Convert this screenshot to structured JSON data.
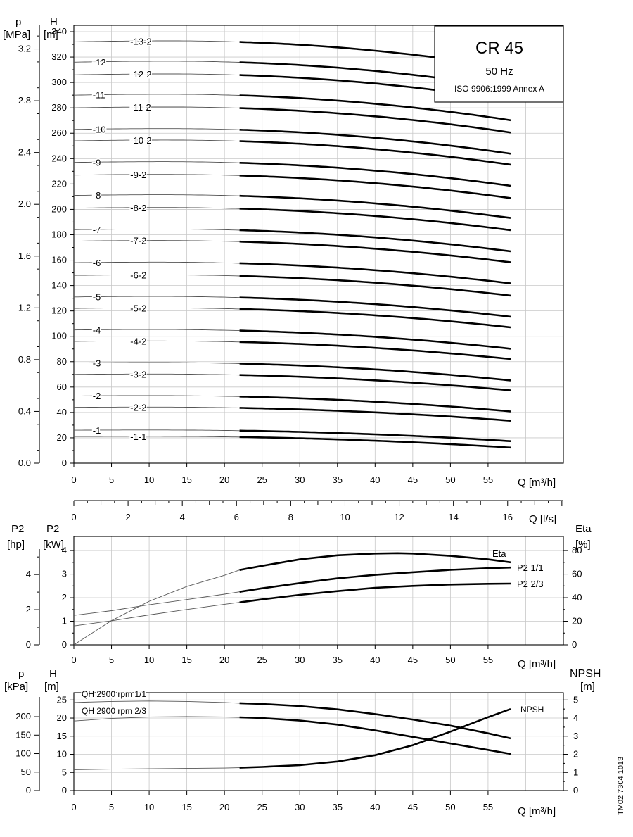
{
  "chart_data": [
    {
      "type": "line",
      "name": "head-curves",
      "title": "CR 45",
      "subtitle": "50 Hz",
      "standard": "ISO 9906:1999 Annex A",
      "xlabel": "Q [m³/h]",
      "xlim": [
        0,
        65
      ],
      "xticks": [
        0,
        5,
        10,
        15,
        20,
        25,
        30,
        35,
        40,
        45,
        50,
        55
      ],
      "ylabel_left_outer": "p",
      "ylabel_left_outer_unit": "[MPa]",
      "ylabel_left": "H",
      "ylabel_left_unit": "[m]",
      "ylim": [
        0,
        345
      ],
      "yticks": [
        0,
        20,
        40,
        60,
        80,
        100,
        120,
        140,
        160,
        180,
        200,
        220,
        240,
        260,
        280,
        300,
        320,
        340
      ],
      "p_ticks": [
        "0.0",
        "0.4",
        "0.8",
        "1.2",
        "1.6",
        "2.0",
        "2.4",
        "2.8",
        "3.2"
      ],
      "operating_range": [
        22,
        58
      ],
      "series": [
        {
          "name": "-1-1",
          "h0": 21,
          "k": 0.0035
        },
        {
          "name": "-1",
          "h0": 26,
          "k": 0.0035
        },
        {
          "name": "-2-2",
          "h0": 44,
          "k": 0.0043
        },
        {
          "name": "-2",
          "h0": 53,
          "k": 0.005
        },
        {
          "name": "-3-2",
          "h0": 70,
          "k": 0.0052
        },
        {
          "name": "-3",
          "h0": 79,
          "k": 0.0057
        },
        {
          "name": "-4-2",
          "h0": 96,
          "k": 0.0058
        },
        {
          "name": "-4",
          "h0": 105,
          "k": 0.0062
        },
        {
          "name": "-5-2",
          "h0": 122,
          "k": 0.0063
        },
        {
          "name": "-5",
          "h0": 131,
          "k": 0.0066
        },
        {
          "name": "-6-2",
          "h0": 148,
          "k": 0.0068
        },
        {
          "name": "-6",
          "h0": 158,
          "k": 0.007
        },
        {
          "name": "-7-2",
          "h0": 175,
          "k": 0.0072
        },
        {
          "name": "-7",
          "h0": 184,
          "k": 0.0074
        },
        {
          "name": "-8-2",
          "h0": 201,
          "k": 0.0076
        },
        {
          "name": "-8",
          "h0": 211,
          "k": 0.0078
        },
        {
          "name": "-9-2",
          "h0": 227,
          "k": 0.008
        },
        {
          "name": "-9",
          "h0": 237,
          "k": 0.0082
        },
        {
          "name": "-10-2",
          "h0": 254,
          "k": 0.0084
        },
        {
          "name": "-10",
          "h0": 263,
          "k": 0.0086
        },
        {
          "name": "-11-2",
          "h0": 280,
          "k": 0.0088
        },
        {
          "name": "-11",
          "h0": 290,
          "k": 0.009
        },
        {
          "name": "-12-2",
          "h0": 306,
          "k": 0.0092
        },
        {
          "name": "-12",
          "h0": 316,
          "k": 0.0094
        },
        {
          "name": "-13-2",
          "h0": 332,
          "k": 0.0096
        }
      ]
    },
    {
      "type": "axis",
      "name": "flow-ls",
      "xlabel": "Q [l/s]",
      "xlim": [
        0,
        18
      ],
      "xticks": [
        0,
        2,
        4,
        6,
        8,
        10,
        12,
        14,
        16
      ]
    },
    {
      "type": "line",
      "name": "power-efficiency",
      "xlabel": "Q [m³/h]",
      "xlim": [
        0,
        65
      ],
      "xticks": [
        0,
        5,
        10,
        15,
        20,
        25,
        30,
        35,
        40,
        45,
        50,
        55
      ],
      "ylabel_left_outer": "P2",
      "ylabel_left_outer_unit": "[hp]",
      "ylabel_left": "P2",
      "ylabel_left_unit": "[kW]",
      "ylabel_right": "Eta",
      "ylabel_right_unit": "[%]",
      "ylim": [
        0,
        4.6
      ],
      "yticks": [
        0,
        1,
        2,
        3,
        4
      ],
      "hp_ticks": [
        "0",
        "2",
        "4"
      ],
      "eta_ticks": [
        "0",
        "20",
        "40",
        "60",
        "80"
      ],
      "series": [
        {
          "name": "Eta",
          "x": [
            0,
            5,
            10,
            15,
            20,
            22,
            25,
            30,
            35,
            40,
            43,
            45,
            50,
            55,
            58
          ],
          "y": [
            0,
            20.5,
            37,
            49.5,
            59,
            63.5,
            67,
            72.5,
            76,
            77.5,
            77.8,
            77.5,
            75.5,
            72.5,
            70
          ]
        },
        {
          "name": "P2 1/1",
          "x": [
            0,
            5,
            10,
            15,
            20,
            22,
            25,
            30,
            35,
            40,
            45,
            50,
            55,
            58
          ],
          "y": [
            1.25,
            1.45,
            1.7,
            1.92,
            2.15,
            2.25,
            2.4,
            2.62,
            2.82,
            2.97,
            3.08,
            3.18,
            3.25,
            3.28
          ]
        },
        {
          "name": "P2 2/3",
          "x": [
            0,
            5,
            10,
            15,
            20,
            22,
            25,
            30,
            35,
            40,
            45,
            50,
            55,
            58
          ],
          "y": [
            0.8,
            1.02,
            1.27,
            1.5,
            1.72,
            1.8,
            1.93,
            2.12,
            2.28,
            2.42,
            2.5,
            2.56,
            2.59,
            2.6
          ]
        }
      ]
    },
    {
      "type": "line",
      "name": "head-npsh",
      "xlabel": "Q [m³/h]",
      "xlim": [
        0,
        65
      ],
      "xticks": [
        0,
        5,
        10,
        15,
        20,
        25,
        30,
        35,
        40,
        45,
        50,
        55
      ],
      "ylabel_left_outer": "p",
      "ylabel_left_outer_unit": "[kPa]",
      "ylabel_left": "H",
      "ylabel_left_unit": "[m]",
      "ylabel_right": "NPSH",
      "ylabel_right_unit": "[m]",
      "ylim": [
        0,
        27
      ],
      "yticks": [
        0,
        5,
        10,
        15,
        20,
        25
      ],
      "kpa_ticks": [
        "0",
        "50",
        "100",
        "150",
        "200"
      ],
      "npsh_ticks": [
        "0",
        "1",
        "2",
        "3",
        "4",
        "5"
      ],
      "series": [
        {
          "name": "QH 2900 rpm 1/1",
          "x": [
            0,
            5,
            10,
            15,
            20,
            22,
            25,
            30,
            35,
            40,
            45,
            50,
            55,
            58
          ],
          "y": [
            24.3,
            24.6,
            24.7,
            24.6,
            24.3,
            24.1,
            23.9,
            23.3,
            22.4,
            21.1,
            19.6,
            17.9,
            15.8,
            14.4
          ]
        },
        {
          "name": "QH 2900 rpm 2/3",
          "x": [
            0,
            5,
            10,
            15,
            20,
            22,
            25,
            30,
            35,
            40,
            45,
            50,
            55,
            58
          ],
          "y": [
            19.2,
            19.9,
            20.3,
            20.4,
            20.3,
            20.2,
            20.0,
            19.3,
            18.2,
            16.6,
            14.8,
            13.0,
            11.2,
            10.1
          ]
        },
        {
          "name": "NPSH",
          "x": [
            0,
            5,
            10,
            15,
            20,
            22,
            25,
            30,
            35,
            40,
            45,
            50,
            55,
            58
          ],
          "y": [
            1.15,
            1.18,
            1.2,
            1.22,
            1.24,
            1.26,
            1.3,
            1.4,
            1.6,
            1.95,
            2.5,
            3.25,
            4.05,
            4.5
          ]
        }
      ]
    }
  ],
  "footer": {
    "code": "TM02 7304 1013"
  }
}
